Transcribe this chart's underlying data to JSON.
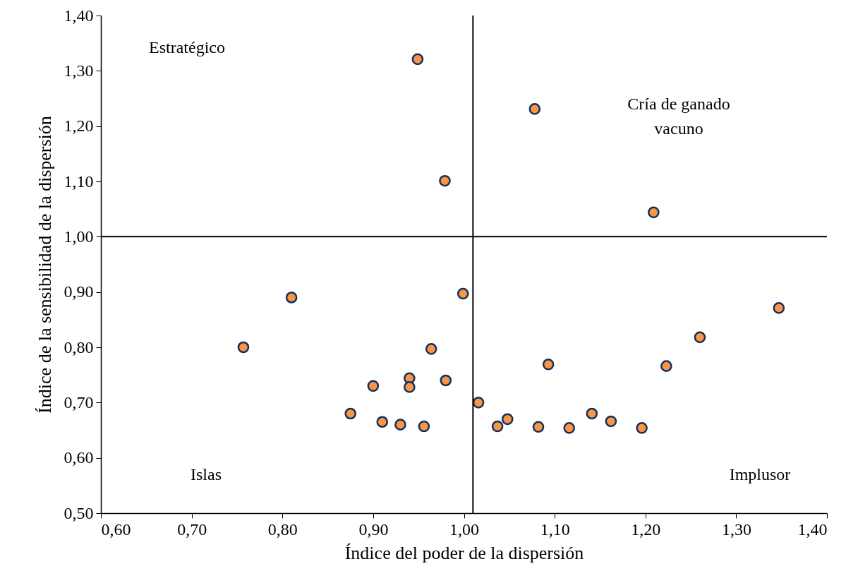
{
  "chart_data": {
    "type": "scatter",
    "xlabel": "Índice del poder de la dispersión",
    "ylabel": "Índice de la sensibilidad de la dispersión",
    "x": [
      0.757,
      0.81,
      0.875,
      0.9,
      0.91,
      0.93,
      0.94,
      0.94,
      0.956,
      0.964,
      0.98,
      0.999,
      1.016,
      1.037,
      1.048,
      1.082,
      1.093,
      1.116,
      1.141,
      1.162,
      1.196,
      1.223,
      1.26,
      1.347,
      1.209,
      0.949,
      0.979,
      1.078
    ],
    "series": [
      {
        "color": "#f79646",
        "values": [
          0.8,
          0.89,
          0.68,
          0.73,
          0.665,
          0.66,
          0.744,
          0.728,
          0.657,
          0.797,
          0.74,
          0.897,
          0.7,
          0.657,
          0.67,
          0.656,
          0.769,
          0.654,
          0.68,
          0.666,
          0.654,
          0.766,
          0.818,
          0.871,
          1.044,
          1.321,
          1.101,
          1.231
        ]
      }
    ],
    "xlim": [
      0.6,
      1.4
    ],
    "ylim": [
      0.5,
      1.4
    ],
    "xticks": [
      {
        "value": 0.6,
        "label": "0,60"
      },
      {
        "value": 0.7,
        "label": "0,70"
      },
      {
        "value": 0.8,
        "label": "0,80"
      },
      {
        "value": 0.9,
        "label": "0,90"
      },
      {
        "value": 1.0,
        "label": "1,00"
      },
      {
        "value": 1.1,
        "label": "1,10"
      },
      {
        "value": 1.2,
        "label": "1,20"
      },
      {
        "value": 1.3,
        "label": "1,30"
      },
      {
        "value": 1.4,
        "label": "1,40"
      }
    ],
    "yticks": [
      {
        "value": 0.5,
        "label": "0,50"
      },
      {
        "value": 0.6,
        "label": "0,60"
      },
      {
        "value": 0.7,
        "label": "0,70"
      },
      {
        "value": 0.8,
        "label": "0,80"
      },
      {
        "value": 0.9,
        "label": "0,90"
      },
      {
        "value": 1.0,
        "label": "1,00"
      },
      {
        "value": 1.1,
        "label": "1,10"
      },
      {
        "value": 1.2,
        "label": "1,20"
      },
      {
        "value": 1.3,
        "label": "1,30"
      },
      {
        "value": 1.4,
        "label": "1,40"
      }
    ],
    "ref_lines": [
      {
        "axis": "x",
        "value": 1.01,
        "color": "#000000"
      },
      {
        "axis": "y",
        "value": 1.0,
        "color": "#000000"
      }
    ],
    "annotations": [
      "Estratégico",
      "Cría de ganado\nvacuno",
      "Islas",
      "Implusor"
    ],
    "marker": "circle",
    "grid": false
  }
}
